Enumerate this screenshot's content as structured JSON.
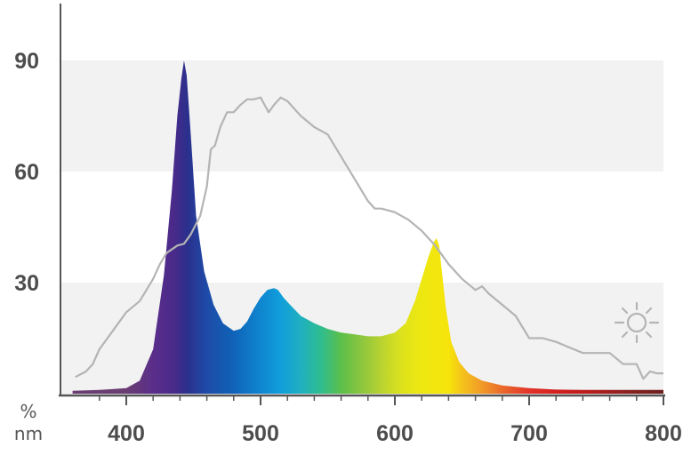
{
  "chart_data": {
    "type": "area",
    "title": "",
    "xlabel": "nm",
    "ylabel": "%",
    "xlim": [
      360,
      800
    ],
    "ylim": [
      0,
      100
    ],
    "x_ticks": [
      400,
      500,
      600,
      700,
      800
    ],
    "y_ticks": [
      30,
      60,
      90
    ],
    "x_tick_labels": [
      "400",
      "500",
      "600",
      "700",
      "800"
    ],
    "y_tick_labels": [
      "30",
      "60",
      "90"
    ],
    "grid": "alternating horizontal bands",
    "legend": "none",
    "series": [
      {
        "type": "area",
        "fill": "visible spectrum gradient",
        "x": [
          360,
          380,
          400,
          410,
          420,
          428,
          434,
          438,
          441,
          443,
          445,
          448,
          452,
          458,
          465,
          472,
          480,
          485,
          490,
          495,
          500,
          505,
          510,
          513,
          517,
          522,
          530,
          540,
          550,
          560,
          570,
          580,
          590,
          600,
          608,
          615,
          620,
          625,
          629,
          631,
          633,
          635,
          638,
          642,
          648,
          655,
          665,
          680,
          700,
          720,
          740,
          760,
          780,
          800
        ],
        "values": [
          0.8,
          1.0,
          1.5,
          3.5,
          12,
          32,
          55,
          75,
          85,
          90,
          86,
          70,
          48,
          33,
          24,
          19,
          17,
          17.5,
          19.5,
          23,
          26,
          28,
          28.5,
          28,
          26,
          24,
          21,
          19,
          17.5,
          16.5,
          16,
          15.5,
          15.5,
          16.5,
          19,
          25,
          31,
          37,
          41,
          42,
          40,
          33,
          23,
          14,
          8.5,
          5.5,
          3.5,
          2.2,
          1.5,
          1.1,
          1.0,
          1.0,
          1.0,
          1.0
        ]
      },
      {
        "type": "line",
        "color": "#b4b4b4",
        "x": [
          362,
          370,
          375,
          380,
          390,
          400,
          410,
          420,
          425,
          430,
          438,
          443,
          448,
          455,
          460,
          463,
          466,
          470,
          475,
          480,
          485,
          490,
          495,
          500,
          503,
          506,
          510,
          515,
          520,
          525,
          530,
          540,
          550,
          560,
          570,
          580,
          585,
          590,
          600,
          610,
          620,
          630,
          640,
          650,
          660,
          665,
          670,
          680,
          690,
          700,
          710,
          720,
          740,
          760,
          770,
          780,
          785,
          790,
          795,
          800
        ],
        "values": [
          4.5,
          6,
          8,
          12,
          17,
          22,
          25,
          31,
          35,
          38,
          40,
          40.5,
          43,
          48,
          56,
          66,
          67,
          72,
          76,
          76,
          78,
          79.5,
          79.5,
          80,
          78,
          76,
          78,
          80,
          79,
          77,
          75,
          72,
          70,
          64,
          58,
          52,
          50,
          50,
          49,
          47,
          44,
          40,
          35,
          31,
          28,
          29,
          27,
          24,
          21,
          15,
          15,
          14,
          11,
          11,
          8,
          8,
          4,
          6,
          5.5,
          5.5
        ]
      }
    ],
    "annotations": [
      "sun icon"
    ]
  },
  "colors": {
    "grid_band": "#f2f2f2",
    "axis": "#555555",
    "reference_line": "#b4b4b4",
    "tick_text": "#4d4d4d"
  },
  "icons": [
    "sun-icon"
  ]
}
